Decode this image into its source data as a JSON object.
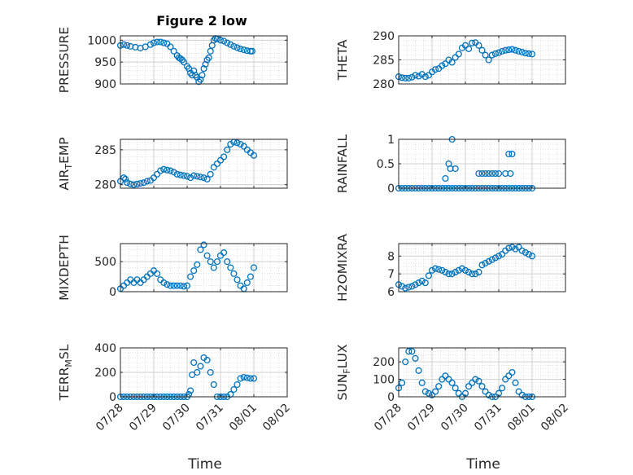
{
  "figure": {
    "title": "Figure 2 low",
    "marker_color": "#0072BD",
    "x_label": "Time",
    "x_tick_labels": [
      "07/28",
      "07/29",
      "07/30",
      "07/31",
      "08/01",
      "08/02"
    ]
  },
  "chart_data": [
    {
      "type": "scatter",
      "ylabel": "PRESSURE",
      "ylim": [
        900,
        1010
      ],
      "yticks": [
        900,
        950,
        1000
      ],
      "xlim": [
        0,
        5
      ],
      "grid": true,
      "series": [
        {
          "x": [
            0,
            0.1,
            0.2,
            0.3,
            0.45,
            0.6,
            0.75,
            0.9,
            1.0,
            1.1,
            1.2,
            1.3,
            1.4,
            1.5,
            1.6,
            1.7,
            1.75,
            1.8,
            1.85,
            1.9,
            2.0,
            2.05,
            2.1,
            2.15,
            2.2,
            2.25,
            2.3,
            2.35,
            2.4,
            2.45,
            2.5,
            2.55,
            2.6,
            2.65,
            2.7,
            2.75,
            2.8,
            2.85,
            2.9,
            3.0,
            3.1,
            3.2,
            3.3,
            3.4,
            3.5,
            3.6,
            3.7,
            3.8,
            3.9,
            3.95
          ],
          "y": [
            988,
            990,
            988,
            986,
            984,
            982,
            985,
            990,
            994,
            996,
            996,
            994,
            992,
            985,
            975,
            965,
            960,
            958,
            955,
            950,
            940,
            935,
            925,
            920,
            930,
            920,
            915,
            905,
            910,
            920,
            935,
            945,
            955,
            960,
            975,
            988,
            1000,
            1004,
            1003,
            1000,
            998,
            994,
            990,
            986,
            983,
            980,
            978,
            976,
            975,
            975
          ]
        }
      ]
    },
    {
      "type": "scatter",
      "ylabel": "THETA",
      "ylim": [
        280,
        290
      ],
      "yticks": [
        280,
        285,
        290
      ],
      "xlim": [
        0,
        5
      ],
      "grid": true,
      "series": [
        {
          "x": [
            0,
            0.1,
            0.2,
            0.3,
            0.4,
            0.5,
            0.6,
            0.7,
            0.8,
            0.9,
            1.0,
            1.1,
            1.2,
            1.3,
            1.4,
            1.5,
            1.6,
            1.7,
            1.8,
            1.9,
            2.0,
            2.1,
            2.2,
            2.3,
            2.4,
            2.5,
            2.6,
            2.7,
            2.8,
            2.9,
            3.0,
            3.1,
            3.2,
            3.3,
            3.4,
            3.5,
            3.6,
            3.7,
            3.8,
            3.9,
            4.0
          ],
          "y": [
            281.5,
            281.3,
            281.2,
            281.2,
            281.4,
            281.8,
            281.6,
            282,
            281.5,
            281.8,
            282.5,
            283,
            283.2,
            283.8,
            284.2,
            285,
            284.5,
            285.5,
            286.2,
            287.5,
            288,
            287.3,
            288.5,
            288.6,
            288,
            287,
            286,
            285,
            286,
            286.3,
            286.5,
            286.8,
            287,
            287.1,
            287.2,
            287,
            286.8,
            286.6,
            286.4,
            286.3,
            286.2
          ]
        }
      ]
    },
    {
      "type": "scatter",
      "ylabel": "AIR_TEMP",
      "ylim": [
        279.5,
        286.5
      ],
      "yticks": [
        280,
        285
      ],
      "xlim": [
        0,
        5
      ],
      "grid": true,
      "series": [
        {
          "x": [
            0,
            0.1,
            0.15,
            0.2,
            0.3,
            0.4,
            0.5,
            0.6,
            0.7,
            0.8,
            0.9,
            1.0,
            1.1,
            1.2,
            1.3,
            1.4,
            1.5,
            1.6,
            1.7,
            1.8,
            1.9,
            2.0,
            2.1,
            2.2,
            2.3,
            2.4,
            2.5,
            2.6,
            2.7,
            2.8,
            2.9,
            3.0,
            3.1,
            3.2,
            3.3,
            3.4,
            3.5,
            3.6,
            3.7,
            3.8,
            3.9,
            4.0
          ],
          "y": [
            280.5,
            281,
            280.8,
            280.3,
            280.1,
            280,
            280.1,
            280.2,
            280.3,
            280.5,
            280.6,
            281,
            281.5,
            282,
            282.2,
            282.1,
            282,
            281.8,
            281.5,
            281.4,
            281.3,
            281.2,
            281,
            281.3,
            281.2,
            281.1,
            281,
            280.8,
            281.5,
            282.5,
            283,
            283.5,
            284,
            285,
            285.8,
            286.1,
            286,
            285.8,
            285.5,
            285,
            284.6,
            284.2
          ]
        }
      ]
    },
    {
      "type": "scatter",
      "ylabel": "RAINFALL",
      "ylim": [
        0,
        1
      ],
      "yticks": [
        0,
        0.5,
        1
      ],
      "xlim": [
        0,
        5
      ],
      "grid": true,
      "series": [
        {
          "x": [
            0,
            0.1,
            0.2,
            0.3,
            0.4,
            0.5,
            0.6,
            0.7,
            0.8,
            0.9,
            1.0,
            1.1,
            1.2,
            1.3,
            1.4,
            1.5,
            1.6,
            1.7,
            1.8,
            1.9,
            2.0,
            2.1,
            2.2,
            2.3,
            2.4,
            2.5,
            2.6,
            2.7,
            2.8,
            2.9,
            3.0,
            3.1,
            3.2,
            3.3,
            3.4,
            3.5,
            3.6,
            3.7,
            3.8,
            3.9,
            4.0,
            1.5,
            1.4,
            1.55,
            1.6,
            1.7,
            2.4,
            2.5,
            2.6,
            2.7,
            2.8,
            2.9,
            3.0,
            3.2,
            3.3,
            3.4,
            3.35
          ],
          "y": [
            0,
            0,
            0,
            0,
            0,
            0,
            0,
            0,
            0,
            0,
            0,
            0,
            0,
            0,
            0,
            0,
            0,
            0,
            0,
            0,
            0,
            0,
            0,
            0,
            0,
            0,
            0,
            0,
            0,
            0,
            0,
            0,
            0,
            0,
            0,
            0,
            0,
            0,
            0,
            0,
            0,
            0.5,
            0.2,
            0.4,
            1.0,
            0.4,
            0.3,
            0.3,
            0.3,
            0.3,
            0.3,
            0.3,
            0.3,
            0.3,
            0.7,
            0.7,
            0.3
          ]
        }
      ]
    },
    {
      "type": "scatter",
      "ylabel": "MIXDEPTH",
      "ylim": [
        0,
        800
      ],
      "yticks": [
        0,
        500
      ],
      "xlim": [
        0,
        5
      ],
      "grid": true,
      "series": [
        {
          "x": [
            0,
            0.1,
            0.2,
            0.3,
            0.4,
            0.5,
            0.6,
            0.7,
            0.8,
            0.9,
            1.0,
            1.1,
            1.2,
            1.3,
            1.4,
            1.5,
            1.6,
            1.7,
            1.8,
            1.9,
            2.0,
            2.1,
            2.2,
            2.3,
            2.4,
            2.5,
            2.6,
            2.7,
            2.8,
            2.9,
            3.0,
            3.1,
            3.2,
            3.3,
            3.4,
            3.5,
            3.6,
            3.7,
            3.8,
            3.9,
            4.0
          ],
          "y": [
            50,
            100,
            150,
            200,
            150,
            200,
            150,
            200,
            250,
            300,
            350,
            300,
            200,
            150,
            120,
            100,
            100,
            100,
            100,
            90,
            100,
            250,
            350,
            450,
            700,
            780,
            600,
            500,
            400,
            500,
            600,
            650,
            500,
            400,
            300,
            200,
            100,
            50,
            150,
            250,
            400
          ]
        }
      ]
    },
    {
      "type": "scatter",
      "ylabel": "H2OMIXRA",
      "ylim": [
        6,
        8.7
      ],
      "yticks": [
        6,
        7,
        8
      ],
      "xlim": [
        0,
        5
      ],
      "grid": true,
      "series": [
        {
          "x": [
            0,
            0.1,
            0.2,
            0.3,
            0.4,
            0.5,
            0.6,
            0.7,
            0.8,
            0.9,
            1.0,
            1.1,
            1.2,
            1.3,
            1.4,
            1.5,
            1.6,
            1.7,
            1.8,
            1.9,
            2.0,
            2.1,
            2.2,
            2.3,
            2.4,
            2.5,
            2.6,
            2.7,
            2.8,
            2.9,
            3.0,
            3.1,
            3.2,
            3.3,
            3.4,
            3.5,
            3.6,
            3.7,
            3.8,
            3.9,
            4.0
          ],
          "y": [
            6.4,
            6.3,
            6.2,
            6.25,
            6.3,
            6.4,
            6.5,
            6.6,
            6.5,
            6.9,
            7.2,
            7.3,
            7.25,
            7.2,
            7.1,
            7.0,
            7.0,
            7.1,
            7.2,
            7.3,
            7.2,
            7.1,
            7.0,
            7.0,
            7.1,
            7.5,
            7.6,
            7.7,
            7.8,
            7.9,
            8.0,
            8.1,
            8.3,
            8.45,
            8.5,
            8.4,
            8.5,
            8.3,
            8.2,
            8.1,
            8.0
          ]
        }
      ]
    },
    {
      "type": "scatter",
      "ylabel": "TERR_MSL",
      "ylim": [
        0,
        400
      ],
      "yticks": [
        0,
        200,
        400
      ],
      "xlim": [
        0,
        5
      ],
      "grid": true,
      "series": [
        {
          "x": [
            0,
            0.1,
            0.2,
            0.3,
            0.4,
            0.5,
            0.6,
            0.7,
            0.8,
            0.9,
            1.0,
            1.1,
            1.2,
            1.3,
            1.4,
            1.5,
            1.6,
            1.7,
            1.8,
            1.9,
            2.0,
            2.05,
            2.1,
            2.15,
            2.2,
            2.3,
            2.4,
            2.5,
            2.6,
            2.7,
            2.8,
            2.9,
            3.0,
            3.1,
            3.2,
            3.3,
            3.4,
            3.5,
            3.6,
            3.7,
            3.8,
            3.9,
            4.0
          ],
          "y": [
            0,
            0,
            0,
            0,
            0,
            0,
            0,
            0,
            0,
            0,
            0,
            0,
            0,
            0,
            0,
            0,
            0,
            0,
            0,
            0,
            0,
            20,
            50,
            180,
            280,
            200,
            250,
            320,
            300,
            200,
            100,
            0,
            0,
            0,
            0,
            20,
            60,
            100,
            150,
            160,
            155,
            150,
            150
          ]
        }
      ]
    },
    {
      "type": "scatter",
      "ylabel": "SUN_FLUX",
      "ylim": [
        0,
        280
      ],
      "yticks": [
        0,
        100,
        200
      ],
      "xlim": [
        0,
        5
      ],
      "grid": true,
      "series": [
        {
          "x": [
            0,
            0.1,
            0.2,
            0.3,
            0.4,
            0.5,
            0.6,
            0.7,
            0.8,
            0.9,
            1.0,
            1.1,
            1.2,
            1.3,
            1.4,
            1.5,
            1.6,
            1.7,
            1.8,
            1.9,
            2.0,
            2.1,
            2.2,
            2.3,
            2.4,
            2.5,
            2.6,
            2.7,
            2.8,
            2.9,
            3.0,
            3.1,
            3.2,
            3.3,
            3.4,
            3.5,
            3.6,
            3.7,
            3.8,
            3.9,
            4.0
          ],
          "y": [
            50,
            80,
            200,
            260,
            260,
            220,
            150,
            80,
            30,
            20,
            10,
            30,
            60,
            100,
            120,
            100,
            80,
            50,
            20,
            0,
            20,
            60,
            80,
            100,
            90,
            60,
            30,
            10,
            0,
            0,
            20,
            50,
            100,
            120,
            140,
            80,
            30,
            10,
            0,
            0,
            0
          ]
        }
      ]
    }
  ]
}
